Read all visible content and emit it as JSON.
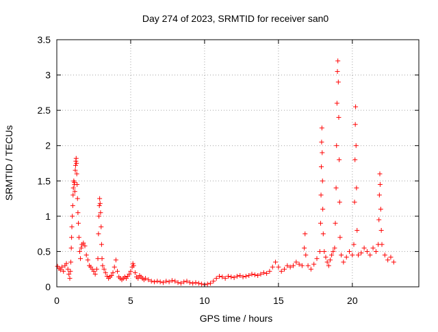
{
  "chart_data": {
    "type": "scatter",
    "title": "Day 274 of 2023, SRMTID for receiver san0",
    "xlabel": "GPS time / hours",
    "ylabel": "SRMTID / TECUs",
    "xlim": [
      0,
      24.5
    ],
    "ylim": [
      0,
      3.5
    ],
    "x_ticks": [
      0,
      5,
      10,
      15,
      20
    ],
    "x_tick_labels": [
      "0",
      "5",
      "10",
      "15",
      "20"
    ],
    "y_ticks": [
      0,
      0.5,
      1,
      1.5,
      2,
      2.5,
      3,
      3.5
    ],
    "y_tick_labels": [
      "0",
      "0.5",
      "1",
      "1.5",
      "2",
      "2.5",
      "3",
      "3.5"
    ],
    "grid": true,
    "marker": "+",
    "color": "#ff0000",
    "series": [
      {
        "name": "san0",
        "points": [
          [
            0.05,
            0.29
          ],
          [
            0.15,
            0.26
          ],
          [
            0.25,
            0.24
          ],
          [
            0.35,
            0.28
          ],
          [
            0.45,
            0.22
          ],
          [
            0.55,
            0.3
          ],
          [
            0.65,
            0.33
          ],
          [
            0.75,
            0.25
          ],
          [
            0.82,
            0.18
          ],
          [
            0.88,
            0.12
          ],
          [
            0.92,
            0.22
          ],
          [
            0.95,
            0.35
          ],
          [
            0.98,
            0.55
          ],
          [
            1.0,
            0.7
          ],
          [
            1.02,
            0.85
          ],
          [
            1.05,
            1.0
          ],
          [
            1.08,
            1.15
          ],
          [
            1.1,
            1.3
          ],
          [
            1.12,
            1.4
          ],
          [
            1.15,
            1.5
          ],
          [
            1.18,
            1.48
          ],
          [
            1.2,
            1.45
          ],
          [
            1.22,
            1.35
          ],
          [
            1.25,
            1.65
          ],
          [
            1.27,
            1.72
          ],
          [
            1.29,
            1.78
          ],
          [
            1.31,
            1.82
          ],
          [
            1.33,
            1.75
          ],
          [
            1.35,
            1.6
          ],
          [
            1.37,
            1.45
          ],
          [
            1.4,
            1.25
          ],
          [
            1.43,
            1.05
          ],
          [
            1.46,
            0.9
          ],
          [
            1.5,
            0.7
          ],
          [
            1.55,
            0.5
          ],
          [
            1.6,
            0.4
          ],
          [
            1.65,
            0.55
          ],
          [
            1.7,
            0.6
          ],
          [
            1.8,
            0.62
          ],
          [
            1.9,
            0.58
          ],
          [
            2.0,
            0.45
          ],
          [
            2.1,
            0.38
          ],
          [
            2.2,
            0.3
          ],
          [
            2.3,
            0.28
          ],
          [
            2.4,
            0.25
          ],
          [
            2.5,
            0.22
          ],
          [
            2.6,
            0.18
          ],
          [
            2.7,
            0.25
          ],
          [
            2.78,
            0.4
          ],
          [
            2.82,
            0.75
          ],
          [
            2.85,
            1.0
          ],
          [
            2.88,
            1.15
          ],
          [
            2.9,
            1.25
          ],
          [
            2.93,
            1.18
          ],
          [
            2.96,
            1.05
          ],
          [
            3.0,
            0.85
          ],
          [
            3.03,
            0.6
          ],
          [
            3.06,
            0.4
          ],
          [
            3.1,
            0.3
          ],
          [
            3.2,
            0.25
          ],
          [
            3.3,
            0.2
          ],
          [
            3.4,
            0.15
          ],
          [
            3.5,
            0.12
          ],
          [
            3.6,
            0.14
          ],
          [
            3.7,
            0.16
          ],
          [
            3.8,
            0.2
          ],
          [
            3.9,
            0.28
          ],
          [
            4.0,
            0.38
          ],
          [
            4.1,
            0.22
          ],
          [
            4.2,
            0.14
          ],
          [
            4.3,
            0.12
          ],
          [
            4.4,
            0.1
          ],
          [
            4.5,
            0.12
          ],
          [
            4.6,
            0.14
          ],
          [
            4.7,
            0.12
          ],
          [
            4.8,
            0.15
          ],
          [
            4.9,
            0.18
          ],
          [
            5.0,
            0.22
          ],
          [
            5.1,
            0.28
          ],
          [
            5.15,
            0.33
          ],
          [
            5.2,
            0.3
          ],
          [
            5.3,
            0.2
          ],
          [
            5.4,
            0.14
          ],
          [
            5.5,
            0.12
          ],
          [
            5.6,
            0.16
          ],
          [
            5.7,
            0.14
          ],
          [
            5.8,
            0.12
          ],
          [
            5.9,
            0.1
          ],
          [
            6.0,
            0.12
          ],
          [
            6.2,
            0.1
          ],
          [
            6.4,
            0.08
          ],
          [
            6.6,
            0.07
          ],
          [
            6.8,
            0.08
          ],
          [
            7.0,
            0.07
          ],
          [
            7.2,
            0.06
          ],
          [
            7.4,
            0.08
          ],
          [
            7.6,
            0.07
          ],
          [
            7.8,
            0.09
          ],
          [
            8.0,
            0.08
          ],
          [
            8.2,
            0.06
          ],
          [
            8.4,
            0.05
          ],
          [
            8.6,
            0.07
          ],
          [
            8.8,
            0.08
          ],
          [
            9.0,
            0.06
          ],
          [
            9.2,
            0.05
          ],
          [
            9.4,
            0.06
          ],
          [
            9.6,
            0.05
          ],
          [
            9.8,
            0.04
          ],
          [
            10.0,
            0.03
          ],
          [
            10.2,
            0.04
          ],
          [
            10.4,
            0.05
          ],
          [
            10.6,
            0.08
          ],
          [
            10.8,
            0.12
          ],
          [
            11.0,
            0.15
          ],
          [
            11.2,
            0.14
          ],
          [
            11.4,
            0.12
          ],
          [
            11.6,
            0.15
          ],
          [
            11.8,
            0.14
          ],
          [
            12.0,
            0.13
          ],
          [
            12.2,
            0.15
          ],
          [
            12.4,
            0.16
          ],
          [
            12.6,
            0.14
          ],
          [
            12.8,
            0.15
          ],
          [
            13.0,
            0.16
          ],
          [
            13.2,
            0.18
          ],
          [
            13.4,
            0.17
          ],
          [
            13.6,
            0.16
          ],
          [
            13.8,
            0.18
          ],
          [
            14.0,
            0.2
          ],
          [
            14.2,
            0.19
          ],
          [
            14.4,
            0.22
          ],
          [
            14.6,
            0.28
          ],
          [
            14.8,
            0.35
          ],
          [
            15.0,
            0.28
          ],
          [
            15.2,
            0.22
          ],
          [
            15.4,
            0.25
          ],
          [
            15.6,
            0.3
          ],
          [
            15.8,
            0.28
          ],
          [
            16.0,
            0.3
          ],
          [
            16.2,
            0.35
          ],
          [
            16.4,
            0.32
          ],
          [
            16.6,
            0.3
          ],
          [
            16.75,
            0.55
          ],
          [
            16.8,
            0.75
          ],
          [
            16.85,
            0.45
          ],
          [
            17.0,
            0.3
          ],
          [
            17.2,
            0.25
          ],
          [
            17.4,
            0.32
          ],
          [
            17.6,
            0.4
          ],
          [
            17.8,
            0.5
          ],
          [
            17.85,
            0.9
          ],
          [
            17.88,
            1.3
          ],
          [
            17.9,
            1.7
          ],
          [
            17.92,
            2.05
          ],
          [
            17.94,
            2.25
          ],
          [
            17.96,
            1.9
          ],
          [
            17.98,
            1.5
          ],
          [
            18.0,
            1.1
          ],
          [
            18.03,
            0.75
          ],
          [
            18.1,
            0.5
          ],
          [
            18.2,
            0.42
          ],
          [
            18.3,
            0.35
          ],
          [
            18.4,
            0.3
          ],
          [
            18.5,
            0.38
          ],
          [
            18.6,
            0.45
          ],
          [
            18.7,
            0.5
          ],
          [
            18.8,
            0.55
          ],
          [
            18.85,
            0.9
          ],
          [
            18.9,
            1.4
          ],
          [
            18.93,
            2.0
          ],
          [
            18.96,
            2.6
          ],
          [
            18.99,
            3.05
          ],
          [
            19.02,
            3.2
          ],
          [
            19.05,
            2.9
          ],
          [
            19.08,
            2.4
          ],
          [
            19.11,
            1.8
          ],
          [
            19.14,
            1.2
          ],
          [
            19.17,
            0.7
          ],
          [
            19.25,
            0.45
          ],
          [
            19.4,
            0.35
          ],
          [
            19.6,
            0.42
          ],
          [
            19.8,
            0.5
          ],
          [
            20.0,
            0.45
          ],
          [
            20.1,
            0.6
          ],
          [
            20.15,
            1.2
          ],
          [
            20.18,
            1.8
          ],
          [
            20.2,
            2.3
          ],
          [
            20.22,
            2.55
          ],
          [
            20.25,
            2.0
          ],
          [
            20.28,
            1.4
          ],
          [
            20.32,
            0.8
          ],
          [
            20.4,
            0.45
          ],
          [
            20.6,
            0.48
          ],
          [
            20.8,
            0.55
          ],
          [
            21.0,
            0.5
          ],
          [
            21.2,
            0.45
          ],
          [
            21.4,
            0.55
          ],
          [
            21.6,
            0.5
          ],
          [
            21.75,
            0.6
          ],
          [
            21.8,
            0.95
          ],
          [
            21.83,
            1.3
          ],
          [
            21.86,
            1.6
          ],
          [
            21.88,
            1.45
          ],
          [
            21.92,
            1.1
          ],
          [
            21.96,
            0.8
          ],
          [
            22.0,
            0.6
          ],
          [
            22.2,
            0.45
          ],
          [
            22.4,
            0.38
          ],
          [
            22.6,
            0.42
          ],
          [
            22.8,
            0.35
          ]
        ]
      }
    ]
  }
}
